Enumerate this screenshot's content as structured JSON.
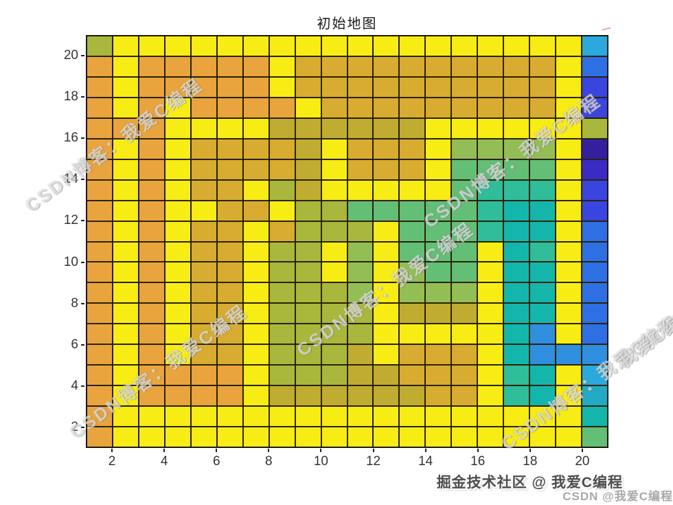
{
  "title": "初始地图",
  "axes": {
    "x_ticks": [
      "2",
      "4",
      "6",
      "8",
      "10",
      "12",
      "14",
      "16",
      "18",
      "20"
    ],
    "y_ticks": [
      "2",
      "4",
      "6",
      "8",
      "10",
      "12",
      "14",
      "16",
      "18",
      "20"
    ]
  },
  "watermark": {
    "line_text": "CSDN博客：我爱C编程",
    "fragment_text": "我爱C编程"
  },
  "captions": {
    "primary": "掘金技术社区 @ 我爱C编程",
    "secondary": "CSDN @我爱C编程"
  },
  "chart_data": {
    "type": "heatmap",
    "title": "初始地图",
    "x_range": [
      1,
      21
    ],
    "y_range": [
      1,
      21
    ],
    "x_ticks": [
      2,
      4,
      6,
      8,
      10,
      12,
      14,
      16,
      18,
      20
    ],
    "y_ticks": [
      2,
      4,
      6,
      8,
      10,
      12,
      14,
      16,
      18,
      20
    ],
    "grid_cols": 20,
    "grid_rows": 20,
    "grid_on": true,
    "grid_line_color": "#2a2209",
    "background": "#FFFFFF",
    "palette": {
      "Y": "#F8EC15",
      "O": "#E9A43D",
      "M": "#D8AC30",
      "K": "#C0AC30",
      "G": "#A9B73C",
      "s": "#93BE56",
      "g": "#63BE76",
      "t": "#2FBD9A",
      "T": "#14B6AC",
      "E": "#22AAC4",
      "C": "#2BA8DC",
      "b": "#2F8EDE",
      "B": "#2E6FE3",
      "V": "#3A44DF",
      "D": "#3A2BC4",
      "N": "#34209F"
    },
    "palette_legend": {
      "Y": "yellow",
      "O": "orange",
      "M": "mustard",
      "K": "khaki",
      "G": "olive-green",
      "s": "yellow-green",
      "g": "green",
      "t": "teal-green",
      "T": "teal",
      "E": "teal-cyan",
      "C": "cyan",
      "b": "light-blue",
      "B": "blue",
      "V": "blue-violet",
      "D": "dark-violet-blue",
      "N": "dark-indigo"
    },
    "rows_top_to_bottom": [
      "GYYYYYYYYYYYYYYYYYYC",
      "OYOOOOOYMMMMMMMMMMYB",
      "OYOOOOOYMMMMMMMMMMYV",
      "OYOYOOOOYMMMMMMMMMYV",
      "OOOYYYYKKKKKKYYYYYYG",
      "OYOYMMMMKYMMMYssssYN",
      "OYOYMMMMKYMMMYggggYD",
      "OYOYMMYGKYYYYYgtttYV",
      "OYOYYMMYGGgggggtTTYV",
      "OYOYMMYMGGGYgggtTTYB",
      "OYOYMMYGGYsYgggYTtYB",
      "OYOYMMYGGYsYsggYTTYB",
      "OYOYMMYGGGsYsssYTTYB",
      "OYOYMMYGGGGYKKKYTTYB",
      "OYOYMMYGGGGYYYYYTbYB",
      "OYOYMMYGGGKYMMMYTbbb",
      "OYOOOOYGGGKKMMMYtTYC",
      "OYOOOOYKKKKKKMMYtTYE",
      "OYYYYYYYYYYYYYYYYYYT",
      "OYYYYYYYYYYYYYYYYYYg"
    ]
  }
}
